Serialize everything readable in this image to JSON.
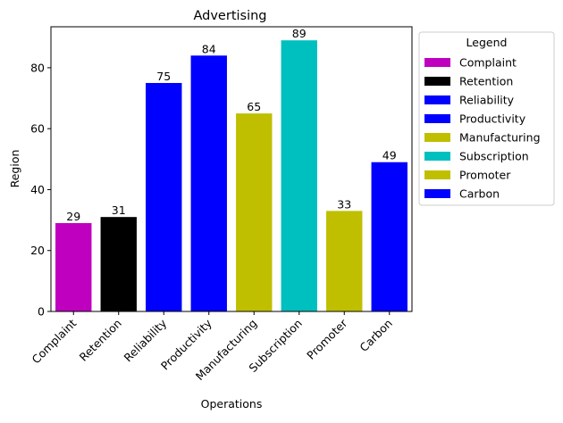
{
  "chart_data": {
    "type": "bar",
    "title": "Advertising",
    "xlabel": "Operations",
    "ylabel": "Region",
    "categories": [
      "Complaint",
      "Retention",
      "Reliability",
      "Productivity",
      "Manufacturing",
      "Subscription",
      "Promoter",
      "Carbon"
    ],
    "values": [
      29,
      31,
      75,
      84,
      65,
      89,
      33,
      49
    ],
    "colors": [
      "#bf00bf",
      "#000000",
      "#0000ff",
      "#0000ff",
      "#bfbf00",
      "#00bfbf",
      "#bfbf00",
      "#0000ff"
    ],
    "ylim": [
      0,
      93.45
    ],
    "yticks": [
      0,
      20,
      40,
      60,
      80
    ],
    "grid": false,
    "legend": {
      "title": "Legend",
      "placement": "outside-right",
      "entries": [
        "Complaint",
        "Retention",
        "Reliability",
        "Productivity",
        "Manufacturing",
        "Subscription",
        "Promoter",
        "Carbon"
      ]
    }
  }
}
